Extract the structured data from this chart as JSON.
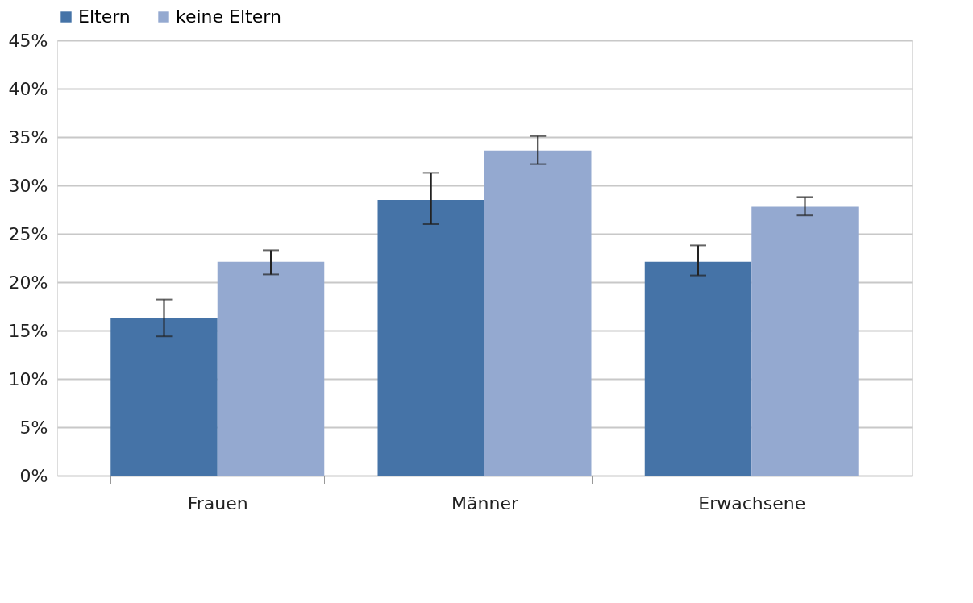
{
  "chart_data": {
    "type": "bar",
    "categories": [
      "Frauen",
      "Männer",
      "Erwachsene"
    ],
    "series": [
      {
        "name": "Eltern",
        "color": "#4573a7",
        "values": [
          16.3,
          28.5,
          22.1
        ],
        "errors": [
          [
            14.4,
            18.2
          ],
          [
            26.0,
            31.3
          ],
          [
            20.7,
            23.8
          ]
        ]
      },
      {
        "name": "keine Eltern",
        "color": "#94a9d0",
        "values": [
          22.1,
          33.6,
          27.8
        ],
        "errors": [
          [
            20.8,
            23.3
          ],
          [
            32.2,
            35.1
          ],
          [
            26.9,
            28.8
          ]
        ]
      }
    ],
    "ylim": [
      0,
      45
    ],
    "yticks": [
      {
        "value": 0,
        "label": "0%"
      },
      {
        "value": 5,
        "label": "5%"
      },
      {
        "value": 10,
        "label": "10%"
      },
      {
        "value": 15,
        "label": "15%"
      },
      {
        "value": 20,
        "label": "20%"
      },
      {
        "value": 25,
        "label": "25%"
      },
      {
        "value": 30,
        "label": "30%"
      },
      {
        "value": 35,
        "label": "35%"
      },
      {
        "value": 40,
        "label": "40%"
      },
      {
        "value": 45,
        "label": "45%"
      }
    ],
    "grid": "y",
    "legend": "top"
  }
}
